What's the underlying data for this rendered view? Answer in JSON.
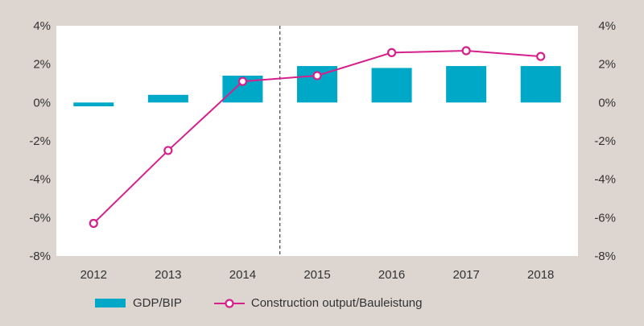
{
  "chart_data": {
    "type": "bar",
    "categories": [
      "2012",
      "2013",
      "2014",
      "2015",
      "2016",
      "2017",
      "2018"
    ],
    "series": [
      {
        "name": "GDP/BIP",
        "kind": "bar",
        "axis": "left",
        "color": "#00a8c8",
        "values": [
          -0.2,
          0.4,
          1.4,
          1.9,
          1.8,
          1.9,
          1.9
        ]
      },
      {
        "name": "Construction output/Bauleistung",
        "kind": "line",
        "axis": "left",
        "color": "#d6218c",
        "values": [
          -6.3,
          -2.5,
          1.1,
          1.4,
          2.6,
          2.7,
          2.4
        ]
      }
    ],
    "ylim": [
      -8,
      4
    ],
    "yticks": [
      "4%",
      "2%",
      "0%",
      "-2%",
      "-4%",
      "-6%",
      "-8%"
    ],
    "ytick_values": [
      4,
      2,
      0,
      -2,
      -4,
      -6,
      -8
    ],
    "y2ticks": [
      "4%",
      "2%",
      "0%",
      "-2%",
      "-4%",
      "-6%",
      "-8%"
    ],
    "divider_after_category": "2014",
    "legend": {
      "position": "bottom",
      "bar_label": "GDP/BIP",
      "line_label": "Construction output/Bauleistung"
    },
    "colors": {
      "background": "#dcd5d0",
      "plot_area": "#ffffff",
      "bar": "#00a8c8",
      "line": "#d6218c"
    }
  }
}
